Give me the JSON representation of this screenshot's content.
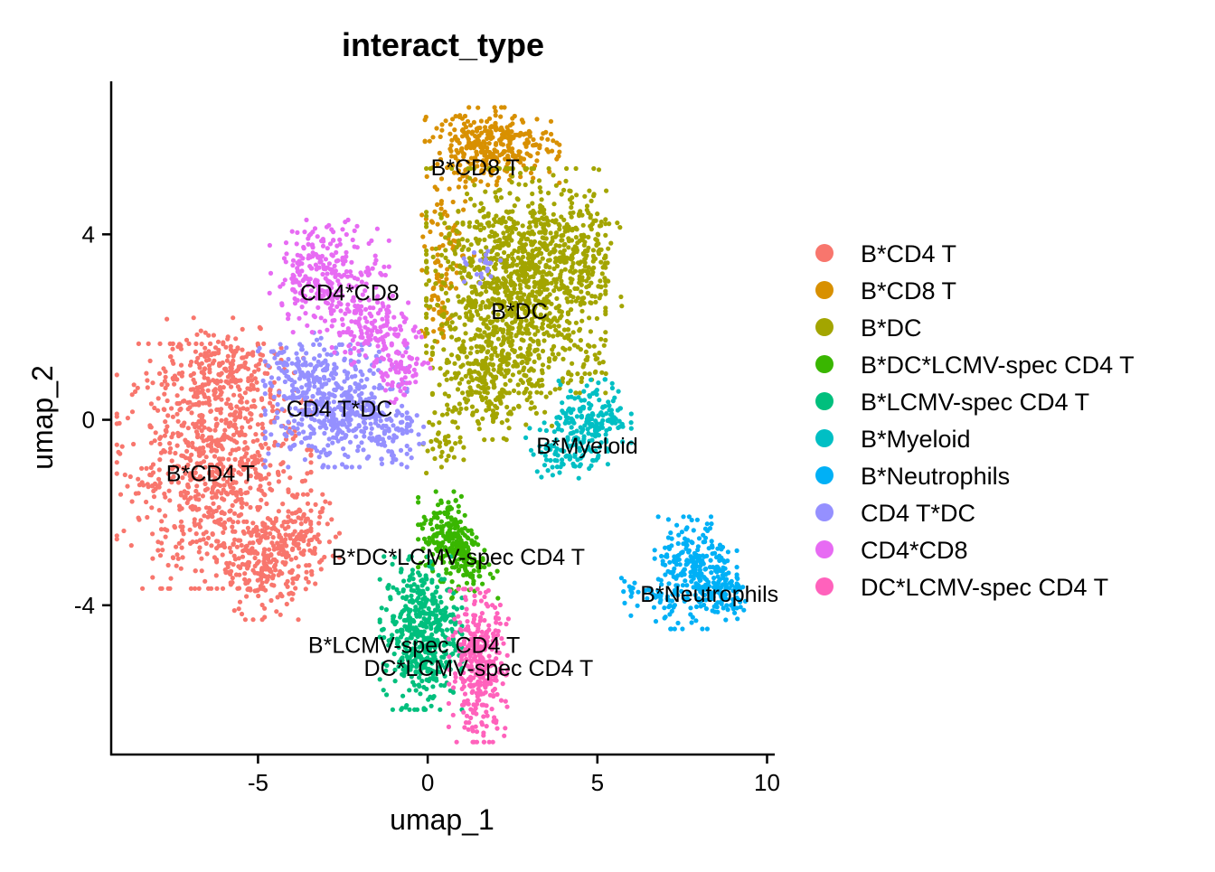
{
  "chart_data": {
    "type": "scatter",
    "title": "interact_type",
    "xlabel": "umap_1",
    "ylabel": "umap_2",
    "xlim": [
      -9.3,
      10.2
    ],
    "ylim": [
      -7.2,
      7.3
    ],
    "x_ticks": [
      -5,
      0,
      5,
      10
    ],
    "y_ticks": [
      -4,
      0,
      4
    ],
    "grid": false,
    "legend_placement": "right",
    "series": [
      {
        "name": "B*CD4 T",
        "color": "#F8766D",
        "label_at": [
          -6.4,
          -1.2
        ],
        "blobs": [
          {
            "cx": -6.3,
            "cy": -1.0,
            "sx": 1.3,
            "sy": 1.2,
            "n": 800
          },
          {
            "cx": -6.0,
            "cy": 1.1,
            "sx": 0.8,
            "sy": 0.5,
            "n": 180
          },
          {
            "cx": -4.9,
            "cy": -3.1,
            "sx": 0.6,
            "sy": 0.55,
            "n": 230
          },
          {
            "cx": -3.7,
            "cy": -2.6,
            "sx": 0.5,
            "sy": 0.45,
            "n": 110
          }
        ]
      },
      {
        "name": "B*CD8 T",
        "color": "#D89000",
        "label_at": [
          1.4,
          5.4
        ],
        "blobs": [
          {
            "cx": 1.9,
            "cy": 5.9,
            "sx": 0.9,
            "sy": 0.38,
            "n": 320
          },
          {
            "cx": 0.6,
            "cy": 3.7,
            "sx": 0.35,
            "sy": 0.6,
            "n": 70
          },
          {
            "cx": 0.3,
            "cy": 2.4,
            "sx": 0.25,
            "sy": 0.5,
            "n": 40
          }
        ]
      },
      {
        "name": "B*DC",
        "color": "#A3A500",
        "label_at": [
          2.7,
          2.3
        ],
        "blobs": [
          {
            "cx": 2.6,
            "cy": 3.0,
            "sx": 1.2,
            "sy": 1.1,
            "n": 1050
          },
          {
            "cx": 1.9,
            "cy": 1.0,
            "sx": 0.8,
            "sy": 0.65,
            "n": 280
          },
          {
            "cx": 4.4,
            "cy": 3.4,
            "sx": 0.6,
            "sy": 0.7,
            "n": 160
          },
          {
            "cx": 0.4,
            "cy": -0.5,
            "sx": 0.3,
            "sy": 0.35,
            "n": 40
          },
          {
            "cx": 4.7,
            "cy": 1.1,
            "sx": 0.25,
            "sy": 0.25,
            "n": 25
          }
        ]
      },
      {
        "name": "B*DC*LCMV-spec CD4 T",
        "color": "#39B600",
        "label_at": [
          0.9,
          -3.0
        ],
        "blobs": [
          {
            "cx": 0.6,
            "cy": -2.5,
            "sx": 0.4,
            "sy": 0.45,
            "n": 190
          },
          {
            "cx": 1.3,
            "cy": -3.2,
            "sx": 0.35,
            "sy": 0.3,
            "n": 70
          }
        ]
      },
      {
        "name": "B*LCMV-spec CD4 T",
        "color": "#00BF7D",
        "label_at": [
          -0.4,
          -4.9
        ],
        "blobs": [
          {
            "cx": -0.2,
            "cy": -4.6,
            "sx": 0.55,
            "sy": 0.75,
            "n": 480
          }
        ]
      },
      {
        "name": "B*Myeloid",
        "color": "#00BFC4",
        "label_at": [
          4.7,
          -0.6
        ],
        "blobs": [
          {
            "cx": 4.9,
            "cy": 0.1,
            "sx": 0.5,
            "sy": 0.35,
            "n": 150
          },
          {
            "cx": 4.1,
            "cy": -0.6,
            "sx": 0.55,
            "sy": 0.3,
            "n": 110
          }
        ]
      },
      {
        "name": "B*Neutrophils",
        "color": "#00B0F6",
        "label_at": [
          8.3,
          -3.8
        ],
        "blobs": [
          {
            "cx": 7.9,
            "cy": -3.3,
            "sx": 0.55,
            "sy": 0.55,
            "n": 280
          },
          {
            "cx": 8.8,
            "cy": -3.8,
            "sx": 0.35,
            "sy": 0.25,
            "n": 70
          },
          {
            "cx": 6.4,
            "cy": -3.8,
            "sx": 0.4,
            "sy": 0.3,
            "n": 30
          }
        ]
      },
      {
        "name": "CD4 T*DC",
        "color": "#9590FF",
        "label_at": [
          -2.6,
          0.2
        ],
        "blobs": [
          {
            "cx": -2.7,
            "cy": 0.3,
            "sx": 0.95,
            "sy": 0.6,
            "n": 470
          },
          {
            "cx": -3.9,
            "cy": 1.0,
            "sx": 0.5,
            "sy": 0.4,
            "n": 80
          },
          {
            "cx": -1.0,
            "cy": -0.3,
            "sx": 0.4,
            "sy": 0.3,
            "n": 70
          },
          {
            "cx": 1.6,
            "cy": 3.2,
            "sx": 0.25,
            "sy": 0.2,
            "n": 20
          }
        ]
      },
      {
        "name": "CD4*CD8",
        "color": "#E76BF3",
        "label_at": [
          -2.3,
          2.7
        ],
        "blobs": [
          {
            "cx": -2.9,
            "cy": 3.1,
            "sx": 0.8,
            "sy": 0.55,
            "n": 280
          },
          {
            "cx": -1.5,
            "cy": 1.9,
            "sx": 0.6,
            "sy": 0.4,
            "n": 140
          },
          {
            "cx": -0.8,
            "cy": 1.0,
            "sx": 0.4,
            "sy": 0.3,
            "n": 60
          }
        ]
      },
      {
        "name": "DC*LCMV-spec CD4 T",
        "color": "#FF62BC",
        "label_at": [
          1.5,
          -5.4
        ],
        "blobs": [
          {
            "cx": 1.5,
            "cy": -5.3,
            "sx": 0.4,
            "sy": 0.75,
            "n": 340
          }
        ]
      }
    ]
  }
}
